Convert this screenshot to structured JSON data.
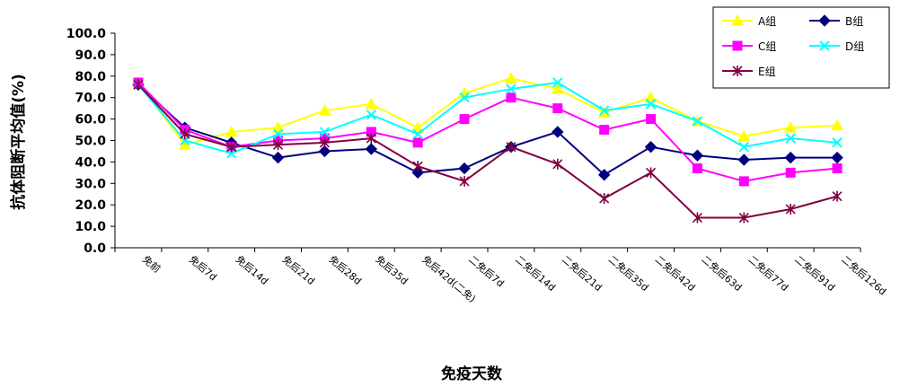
{
  "chart_data": {
    "type": "line",
    "xlabel": "免疫天数",
    "ylabel": "抗体阻断平均值(%)",
    "ylim": [
      0,
      100
    ],
    "yticks": [
      "0.0",
      "10.0",
      "20.0",
      "30.0",
      "40.0",
      "50.0",
      "60.0",
      "70.0",
      "80.0",
      "90.0",
      "100.0"
    ],
    "grid": false,
    "legend_position": "top-right",
    "categories": [
      "免前",
      "免后7d",
      "免后14d",
      "免后21d",
      "免后28d",
      "免后35d",
      "免后42d(二免)",
      "二免后7d",
      "二免后14d",
      "二免后21d",
      "二免后35d",
      "二免后42d",
      "二免后63d",
      "二免后77d",
      "二免后91d",
      "二免后126d"
    ],
    "series": [
      {
        "name": "A组",
        "color": "#ffff00",
        "marker": "triangle",
        "values": [
          77,
          48,
          54,
          56,
          64,
          67,
          56,
          72,
          79,
          74,
          63,
          70,
          59,
          52,
          56,
          57
        ]
      },
      {
        "name": "B组",
        "color": "#000080",
        "marker": "diamond",
        "values": [
          76,
          56,
          49,
          42,
          45,
          46,
          35,
          37,
          47,
          54,
          34,
          47,
          43,
          41,
          42,
          42
        ]
      },
      {
        "name": "C组",
        "color": "#ff00ff",
        "marker": "square",
        "values": [
          77,
          55,
          47,
          50,
          51,
          54,
          49,
          60,
          70,
          65,
          55,
          60,
          37,
          31,
          35,
          37
        ]
      },
      {
        "name": "D组",
        "color": "#00ffff",
        "marker": "x",
        "values": [
          76,
          50,
          44,
          53,
          54,
          62,
          53,
          70,
          74,
          77,
          64,
          67,
          59,
          47,
          51,
          49
        ]
      },
      {
        "name": "E组",
        "color": "#800040",
        "marker": "star",
        "values": [
          76,
          53,
          47,
          48,
          49,
          51,
          38,
          31,
          47,
          39,
          23,
          35,
          14,
          14,
          18,
          24
        ]
      }
    ]
  }
}
